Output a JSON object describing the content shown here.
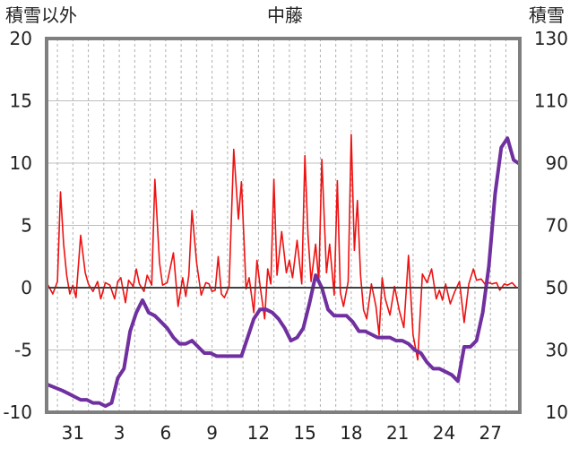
{
  "chart_data": {
    "type": "line",
    "title": "中藤",
    "left_axis_label": "積雪以外",
    "right_axis_label": "積雪",
    "left_ylim": [
      -10,
      20
    ],
    "left_ticks": [
      -10,
      -5,
      0,
      5,
      10,
      15,
      20
    ],
    "right_ylim": [
      10,
      130
    ],
    "right_ticks": [
      10,
      30,
      50,
      70,
      90,
      110,
      130
    ],
    "x_range": [
      29.3,
      59.9
    ],
    "x_ticks": [
      31,
      34,
      37,
      40,
      43,
      46,
      49,
      52,
      55,
      58
    ],
    "x_tick_labels": [
      "31",
      "3",
      "6",
      "9",
      "12",
      "15",
      "18",
      "21",
      "24",
      "27"
    ],
    "grid": "vertical dashed at each day, dark zero line",
    "colors": {
      "series_1": "#ee1111",
      "series_2": "#7030a0",
      "frame": "#7f7f7f",
      "zero_line": "#404040"
    },
    "series": [
      {
        "axis": "left",
        "color": "#ee1111",
        "x": [
          29.4,
          29.7,
          30.0,
          30.2,
          30.4,
          30.6,
          30.8,
          31.0,
          31.2,
          31.5,
          31.8,
          32.0,
          32.3,
          32.6,
          32.8,
          33.1,
          33.4,
          33.7,
          33.9,
          34.1,
          34.4,
          34.6,
          34.9,
          35.1,
          35.3,
          35.6,
          35.8,
          36.1,
          36.3,
          36.6,
          36.8,
          37.1,
          37.3,
          37.5,
          37.8,
          38.1,
          38.3,
          38.5,
          38.7,
          39.0,
          39.3,
          39.6,
          39.8,
          40.0,
          40.2,
          40.4,
          40.6,
          40.8,
          41.1,
          41.4,
          41.7,
          41.9,
          42.2,
          42.4,
          42.7,
          42.9,
          43.1,
          43.4,
          43.6,
          43.8,
          44.0,
          44.2,
          44.5,
          44.8,
          45.0,
          45.2,
          45.5,
          45.8,
          46.0,
          46.2,
          46.4,
          46.7,
          46.9,
          47.1,
          47.4,
          47.6,
          47.9,
          48.1,
          48.3,
          48.5,
          48.8,
          49.0,
          49.2,
          49.4,
          49.6,
          49.8,
          50.0,
          50.3,
          50.6,
          50.8,
          51.0,
          51.2,
          51.5,
          51.8,
          52.1,
          52.4,
          52.7,
          53.0,
          53.3,
          53.6,
          53.9,
          54.2,
          54.5,
          54.7,
          54.9,
          55.1,
          55.4,
          55.7,
          56.0,
          56.3,
          56.6,
          56.9,
          57.1,
          57.4,
          57.7,
          57.9,
          58.1,
          58.4,
          58.6,
          58.9,
          59.1,
          59.4,
          59.7
        ],
        "y": [
          0.2,
          -0.5,
          0.5,
          7.7,
          3.5,
          1.0,
          -0.5,
          0.2,
          -0.8,
          4.2,
          1.2,
          0.3,
          -0.3,
          0.5,
          -0.9,
          0.4,
          0.2,
          -0.9,
          0.5,
          0.8,
          -1.2,
          0.6,
          0.1,
          1.5,
          0.3,
          -0.3,
          1.0,
          0.2,
          8.7,
          2.0,
          0.2,
          0.4,
          1.6,
          2.8,
          -1.5,
          0.8,
          -0.7,
          1.0,
          6.2,
          2.0,
          -0.6,
          0.4,
          0.3,
          -0.3,
          -0.2,
          2.5,
          -0.5,
          -0.8,
          0.1,
          11.1,
          5.5,
          8.5,
          -0.1,
          0.8,
          -2.0,
          2.2,
          0.2,
          -2.5,
          1.5,
          0.3,
          8.7,
          1.0,
          4.5,
          1.2,
          2.2,
          0.8,
          3.8,
          0.3,
          10.6,
          4.3,
          0.5,
          3.5,
          0.5,
          10.3,
          1.2,
          3.5,
          -0.6,
          8.6,
          -0.4,
          -1.5,
          0.5,
          12.3,
          3.0,
          7.0,
          1.0,
          -1.8,
          -2.5,
          0.3,
          -1.5,
          -3.8,
          0.8,
          -0.9,
          -2.2,
          0.1,
          -1.8,
          -3.2,
          2.6,
          -3.8,
          -5.8,
          1.1,
          0.4,
          1.5,
          -0.9,
          -0.2,
          -1.0,
          0.3,
          -1.3,
          -0.3,
          0.5,
          -2.8,
          0.3,
          1.5,
          0.6,
          0.7,
          0.2,
          0.4,
          0.3,
          0.4,
          -0.2,
          0.3,
          0.2,
          0.4,
          0.0
        ]
      },
      {
        "axis": "right",
        "color": "#7030a0",
        "x": [
          29.3,
          29.8,
          30.3,
          30.7,
          31.1,
          31.5,
          31.9,
          32.3,
          32.7,
          33.1,
          33.5,
          33.9,
          34.3,
          34.7,
          35.1,
          35.5,
          35.9,
          36.3,
          36.7,
          37.1,
          37.5,
          37.9,
          38.3,
          38.7,
          39.1,
          39.5,
          39.9,
          40.3,
          40.7,
          41.1,
          41.5,
          41.9,
          42.3,
          42.7,
          43.1,
          43.5,
          43.9,
          44.3,
          44.7,
          45.1,
          45.5,
          45.9,
          46.3,
          46.7,
          47.1,
          47.5,
          47.9,
          48.3,
          48.7,
          49.1,
          49.5,
          49.9,
          50.3,
          50.7,
          51.1,
          51.5,
          51.9,
          52.3,
          52.7,
          53.1,
          53.5,
          53.9,
          54.3,
          54.7,
          55.1,
          55.5,
          55.9,
          56.3,
          56.7,
          57.1,
          57.5,
          57.9,
          58.3,
          58.7,
          59.1,
          59.5,
          59.8
        ],
        "y": [
          19,
          18,
          17,
          16,
          15,
          14,
          14,
          13,
          13,
          12,
          13,
          21,
          24,
          36,
          42,
          46,
          42,
          41,
          39,
          37,
          34,
          32,
          32,
          33,
          31,
          29,
          29,
          28,
          28,
          28,
          28,
          28,
          34,
          40,
          43,
          43,
          42,
          40,
          37,
          33,
          34,
          37,
          45,
          54,
          50,
          43,
          41,
          41,
          41,
          39,
          36,
          36,
          35,
          34,
          34,
          34,
          33,
          33,
          32,
          30,
          29,
          26,
          24,
          24,
          23,
          22,
          20,
          31,
          31,
          33,
          42,
          57,
          80,
          95,
          98,
          91,
          90
        ]
      }
    ]
  }
}
